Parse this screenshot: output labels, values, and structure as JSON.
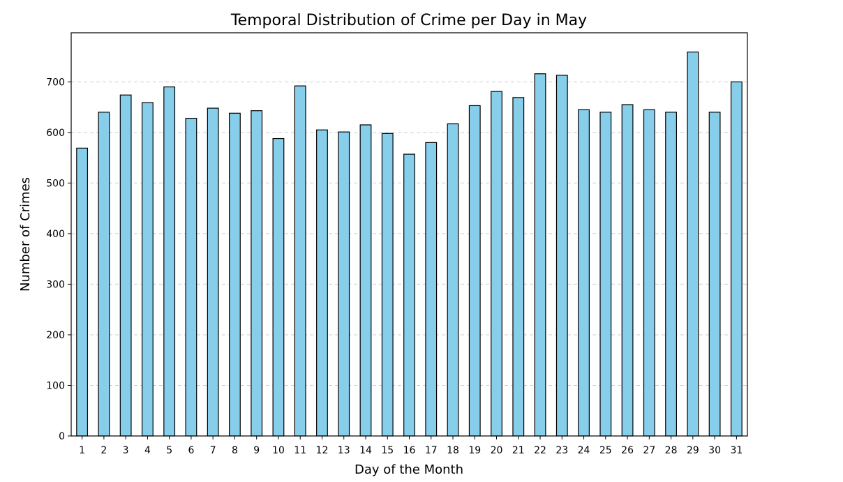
{
  "chart_data": {
    "type": "bar",
    "title": "Temporal Distribution of Crime per Day in May",
    "xlabel": "Day of the Month",
    "ylabel": "Number of Crimes",
    "categories": [
      "1",
      "2",
      "3",
      "4",
      "5",
      "6",
      "7",
      "8",
      "9",
      "10",
      "11",
      "12",
      "13",
      "14",
      "15",
      "16",
      "17",
      "18",
      "19",
      "20",
      "21",
      "22",
      "23",
      "24",
      "25",
      "26",
      "27",
      "28",
      "29",
      "30",
      "31"
    ],
    "values": [
      569,
      640,
      674,
      659,
      690,
      628,
      648,
      638,
      643,
      588,
      692,
      605,
      601,
      615,
      598,
      557,
      580,
      617,
      653,
      681,
      669,
      716,
      713,
      645,
      640,
      655,
      645,
      640,
      759,
      640,
      700
    ],
    "ylim": [
      0,
      797
    ],
    "yticks": [
      0,
      100,
      200,
      300,
      400,
      500,
      600,
      700
    ],
    "grid": "y-dashed",
    "legend": "none",
    "colors": {
      "bar_fill": "#87ceeb",
      "bar_edge": "#000000",
      "grid": "#cccccc",
      "axes": "#000000"
    }
  }
}
